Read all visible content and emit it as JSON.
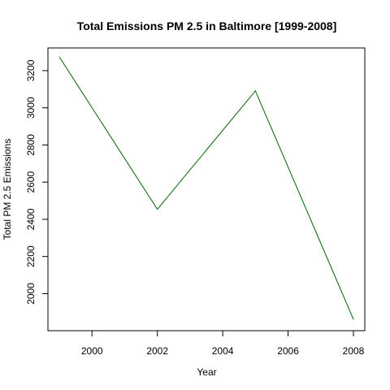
{
  "chart_data": {
    "type": "line",
    "title": "Total Emissions PM 2.5 in Baltimore [1999-2008]",
    "xlabel": "Year",
    "ylabel": "Total PM 2.5 Emissions",
    "x": [
      1999,
      2002,
      2005,
      2008
    ],
    "series": [
      {
        "values": [
          3274,
          2454,
          3091,
          1862
        ],
        "color": "#006400"
      }
    ],
    "xlim": [
      1999,
      2008
    ],
    "ylim": [
      1862,
      3274
    ],
    "xticks": [
      2000,
      2002,
      2004,
      2006,
      2008
    ],
    "yticks": [
      2000,
      2200,
      2400,
      2600,
      2800,
      3000,
      3200
    ],
    "xtick_labels": [
      "2000",
      "2002",
      "2004",
      "2006",
      "2008"
    ],
    "ytick_labels": [
      "2000",
      "2200",
      "2400",
      "2600",
      "2800",
      "3000",
      "3200"
    ],
    "grid": false,
    "legend": "none"
  }
}
